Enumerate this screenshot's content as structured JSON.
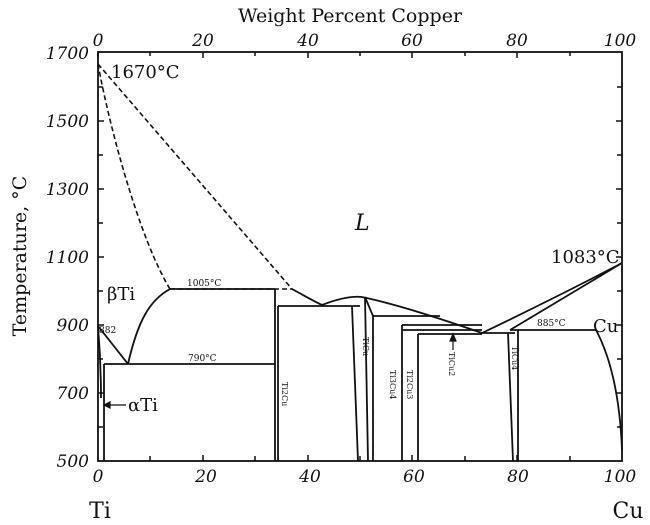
{
  "diagram": {
    "top_axis_title": "Weight Percent Copper",
    "y_axis_title": "Temperature, °C",
    "top_ticks": [
      "0",
      "20",
      "40",
      "60",
      "80",
      "100"
    ],
    "bottom_ticks": [
      "0",
      "20",
      "40",
      "60",
      "80",
      "100"
    ],
    "y_ticks": [
      "500",
      "700",
      "900",
      "1100",
      "1300",
      "1500",
      "1700"
    ],
    "left_element": "Ti",
    "right_element": "Cu",
    "labels": {
      "ti_melting": "1670°C",
      "cu_melting": "1083°C",
      "liquid": "L",
      "beta_ti": "βTi",
      "alpha_ti": "αTi",
      "cu_phase": "Cu",
      "t1005": "1005°C",
      "t790": "790°C",
      "t885": "885°C",
      "t882": "882"
    },
    "phases": {
      "ti2cu": "Ti2Cu",
      "ticu": "TiCu",
      "ti3cu4": "Ti3Cu4",
      "ti2cu3": "Ti2Cu3",
      "ticu2": "TiCu2",
      "ticu4": "TiCu4"
    }
  }
}
